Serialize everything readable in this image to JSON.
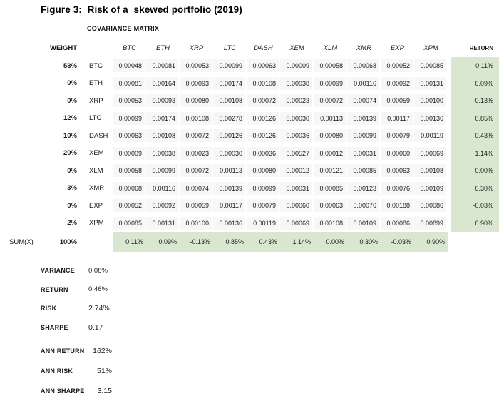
{
  "title": "Figure 3:  Risk of a  skewed portfolio (2019)",
  "covariance_label": "COVARIANCE MATRIX",
  "weight_header": "WEIGHT",
  "return_header": "RETURN",
  "sum_label": "SUM(X)",
  "colors": {
    "highlight_green": "#d9e7d1",
    "cell_gray": "#f7f7f7"
  },
  "matrix": {
    "columns": [
      "BTC",
      "ETH",
      "XRP",
      "LTC",
      "DASH",
      "XEM",
      "XLM",
      "XMR",
      "EXP",
      "XPM"
    ],
    "rows": [
      {
        "weight": "53%",
        "asset": "BTC",
        "values": [
          "0.00048",
          "0.00081",
          "0.00053",
          "0.00099",
          "0.00063",
          "0.00009",
          "0.00058",
          "0.00068",
          "0.00052",
          "0.00085"
        ],
        "return": "0.11%"
      },
      {
        "weight": "0%",
        "asset": "ETH",
        "values": [
          "0.00081",
          "0.00164",
          "0.00093",
          "0.00174",
          "0.00108",
          "0.00038",
          "0.00099",
          "0.00116",
          "0.00092",
          "0.00131"
        ],
        "return": "0.09%"
      },
      {
        "weight": "0%",
        "asset": "XRP",
        "values": [
          "0.00053",
          "0.00093",
          "0.00080",
          "0.00108",
          "0.00072",
          "0.00023",
          "0.00072",
          "0.00074",
          "0.00059",
          "0.00100"
        ],
        "return": "-0.13%"
      },
      {
        "weight": "12%",
        "asset": "LTC",
        "values": [
          "0.00099",
          "0.00174",
          "0.00108",
          "0.00278",
          "0.00126",
          "0.00030",
          "0.00113",
          "0.00139",
          "0.00117",
          "0.00136"
        ],
        "return": "0.85%"
      },
      {
        "weight": "10%",
        "asset": "DASH",
        "values": [
          "0.00063",
          "0.00108",
          "0.00072",
          "0.00126",
          "0.00126",
          "0.00036",
          "0.00080",
          "0.00099",
          "0.00079",
          "0.00119"
        ],
        "return": "0.43%"
      },
      {
        "weight": "20%",
        "asset": "XEM",
        "values": [
          "0.00009",
          "0.00038",
          "0.00023",
          "0.00030",
          "0.00036",
          "0.00527",
          "0.00012",
          "0.00031",
          "0.00060",
          "0.00069"
        ],
        "return": "1.14%"
      },
      {
        "weight": "0%",
        "asset": "XLM",
        "values": [
          "0.00058",
          "0.00099",
          "0.00072",
          "0.00113",
          "0.00080",
          "0.00012",
          "0.00121",
          "0.00085",
          "0.00063",
          "0.00108"
        ],
        "return": "0.00%"
      },
      {
        "weight": "3%",
        "asset": "XMR",
        "values": [
          "0.00068",
          "0.00116",
          "0.00074",
          "0.00139",
          "0.00099",
          "0.00031",
          "0.00085",
          "0.00123",
          "0.00076",
          "0.00109"
        ],
        "return": "0.30%"
      },
      {
        "weight": "0%",
        "asset": "EXP",
        "values": [
          "0.00052",
          "0.00092",
          "0.00059",
          "0.00117",
          "0.00079",
          "0.00060",
          "0.00063",
          "0.00076",
          "0.00188",
          "0.00086"
        ],
        "return": "-0.03%"
      },
      {
        "weight": "2%",
        "asset": "XPM",
        "values": [
          "0.00085",
          "0.00131",
          "0.00100",
          "0.00136",
          "0.00119",
          "0.00069",
          "0.00108",
          "0.00109",
          "0.00086",
          "0.00899"
        ],
        "return": "0.90%"
      }
    ],
    "sum_row": {
      "weight": "100%",
      "values": [
        "0.11%",
        "0.09%",
        "-0.13%",
        "0.85%",
        "0.43%",
        "1.14%",
        "0.00%",
        "0.30%",
        "-0.03%",
        "0.90%"
      ]
    }
  },
  "stats": [
    {
      "label": "VARIANCE",
      "value": "0.08%"
    },
    {
      "label": "RETURN",
      "value": "0.46%"
    },
    {
      "label": "RISK",
      "value": "2.74%"
    },
    {
      "label": "SHARPE",
      "value": "0.17"
    }
  ],
  "annual_stats": [
    {
      "label": "ANN RETURN",
      "value": "162%"
    },
    {
      "label": "ANN RISK",
      "value": "51%"
    },
    {
      "label": "ANN SHARPE",
      "value": "3.15"
    }
  ]
}
